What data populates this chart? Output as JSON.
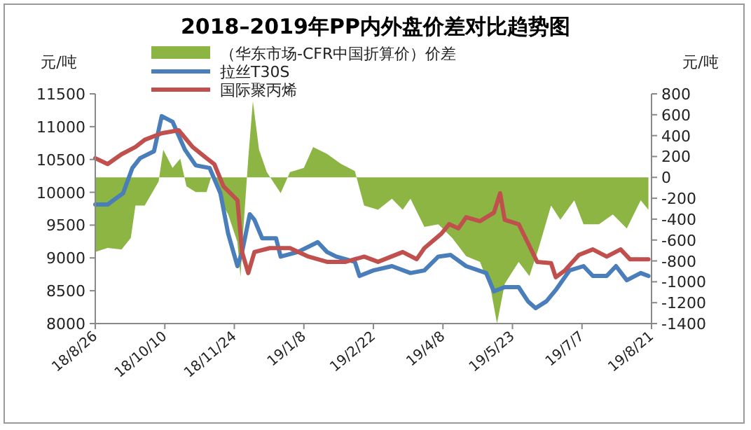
{
  "chart_data": {
    "type": "line",
    "title": "2018–2019年PP内外盘价差对比趋势图",
    "ylabel": "元/吨",
    "y2label": "元/吨",
    "legend": "top",
    "grid": false,
    "marker": "none",
    "line_style": "solid",
    "xlim": [
      "2018-08-26",
      "2019-08-21"
    ],
    "xticks": [
      {
        "value": "2018-08-26",
        "label": "18/8/26"
      },
      {
        "value": "2018-10-10",
        "label": "18/10/10"
      },
      {
        "value": "2018-11-24",
        "label": "18/11/24"
      },
      {
        "value": "2019-01-08",
        "label": "19/1/8"
      },
      {
        "value": "2019-02-22",
        "label": "19/2/22"
      },
      {
        "value": "2019-04-08",
        "label": "19/4/8"
      },
      {
        "value": "2019-05-23",
        "label": "19/5/23"
      },
      {
        "value": "2019-07-07",
        "label": "19/7/7"
      },
      {
        "value": "2019-08-21",
        "label": "19/8/21"
      }
    ],
    "ylim": [
      8000,
      11500
    ],
    "yticks": [
      8000,
      8500,
      9000,
      9500,
      10000,
      10500,
      11000,
      11500
    ],
    "y2lim": [
      -1400,
      800
    ],
    "y2ticks": [
      -1400,
      -1200,
      -1000,
      -800,
      -600,
      -400,
      -200,
      0,
      200,
      400,
      600,
      800
    ],
    "series": [
      {
        "name": "（华东市场-CFR中国折算价）价差",
        "type": "area",
        "axis": "y2",
        "color": "#8db544",
        "x": [
          "2018-08-26",
          "2018-09-03",
          "2018-09-12",
          "2018-09-18",
          "2018-09-21",
          "2018-09-27",
          "2018-10-06",
          "2018-10-09",
          "2018-10-15",
          "2018-10-20",
          "2018-10-24",
          "2018-10-30",
          "2018-11-06",
          "2018-11-10",
          "2018-11-15",
          "2018-11-20",
          "2018-11-26",
          "2018-11-28",
          "2018-11-29",
          "2018-12-03",
          "2018-12-06",
          "2018-12-10",
          "2018-12-15",
          "2018-12-24",
          "2018-12-30",
          "2019-01-08",
          "2019-01-14",
          "2019-01-23",
          "2019-02-01",
          "2019-02-10",
          "2019-02-16",
          "2019-02-25",
          "2019-03-06",
          "2019-03-13",
          "2019-03-18",
          "2019-03-27",
          "2019-04-05",
          "2019-04-14",
          "2019-04-23",
          "2019-05-02",
          "2019-05-09",
          "2019-05-13",
          "2019-05-18",
          "2019-05-27",
          "2019-06-03",
          "2019-06-09",
          "2019-06-17",
          "2019-06-23",
          "2019-07-02",
          "2019-07-08",
          "2019-07-18",
          "2019-07-27",
          "2019-08-05",
          "2019-08-14",
          "2019-08-19"
        ],
        "values": [
          -715,
          -675,
          -690,
          -580,
          -270,
          -270,
          -40,
          265,
          90,
          180,
          -85,
          -140,
          -140,
          50,
          -220,
          -355,
          -620,
          -955,
          -675,
          180,
          730,
          265,
          50,
          -150,
          50,
          90,
          290,
          225,
          130,
          60,
          -270,
          -310,
          -205,
          -310,
          -205,
          -475,
          -450,
          -580,
          -755,
          -810,
          -1075,
          -1400,
          -1020,
          -810,
          -945,
          -675,
          -270,
          -405,
          -220,
          -450,
          -450,
          -355,
          -490,
          -220,
          -310
        ]
      },
      {
        "name": "拉丝T30S",
        "color": "#4a7ebb",
        "x": [
          "2018-08-26",
          "2018-09-03",
          "2018-09-08",
          "2018-09-13",
          "2018-09-19",
          "2018-09-24",
          "2018-10-03",
          "2018-10-08",
          "2018-10-15",
          "2018-10-23",
          "2018-10-30",
          "2018-11-08",
          "2018-11-15",
          "2018-11-20",
          "2018-11-26",
          "2018-11-29",
          "2018-12-04",
          "2018-12-07",
          "2018-12-12",
          "2018-12-21",
          "2018-12-24",
          "2019-01-04",
          "2019-01-17",
          "2019-01-23",
          "2019-01-29",
          "2019-02-10",
          "2019-02-13",
          "2019-02-22",
          "2019-03-06",
          "2019-03-18",
          "2019-03-27",
          "2019-04-05",
          "2019-04-13",
          "2019-04-23",
          "2019-05-06",
          "2019-05-11",
          "2019-05-18",
          "2019-05-27",
          "2019-06-02",
          "2019-06-07",
          "2019-06-14",
          "2019-06-20",
          "2019-06-29",
          "2019-07-08",
          "2019-07-14",
          "2019-07-23",
          "2019-07-29",
          "2019-08-05",
          "2019-08-14",
          "2019-08-19"
        ],
        "values": [
          9814,
          9814,
          9900,
          9985,
          10370,
          10520,
          10625,
          11160,
          11075,
          10650,
          10410,
          10370,
          9985,
          9370,
          8875,
          9090,
          9665,
          9580,
          9300,
          9300,
          9020,
          9090,
          9240,
          9090,
          9020,
          8940,
          8725,
          8810,
          8875,
          8770,
          8810,
          9020,
          9045,
          8875,
          8770,
          8490,
          8555,
          8555,
          8340,
          8235,
          8340,
          8510,
          8810,
          8875,
          8725,
          8725,
          8875,
          8660,
          8770,
          8725
        ]
      },
      {
        "name": "国际聚丙烯",
        "color": "#c0504d",
        "x": [
          "2018-08-26",
          "2018-09-03",
          "2018-09-12",
          "2018-09-21",
          "2018-09-27",
          "2018-10-08",
          "2018-10-19",
          "2018-10-28",
          "2018-11-06",
          "2018-11-11",
          "2018-11-17",
          "2018-11-26",
          "2018-11-29",
          "2018-12-03",
          "2018-12-07",
          "2018-12-17",
          "2018-12-30",
          "2019-01-11",
          "2019-01-23",
          "2019-02-04",
          "2019-02-16",
          "2019-02-25",
          "2019-03-13",
          "2019-03-22",
          "2019-03-27",
          "2019-04-07",
          "2019-04-12",
          "2019-04-18",
          "2019-04-23",
          "2019-05-02",
          "2019-05-11",
          "2019-05-15",
          "2019-05-18",
          "2019-05-27",
          "2019-06-08",
          "2019-06-17",
          "2019-06-20",
          "2019-06-26",
          "2019-07-05",
          "2019-07-14",
          "2019-07-23",
          "2019-08-01",
          "2019-08-07",
          "2019-08-19"
        ],
        "values": [
          10520,
          10430,
          10580,
          10690,
          10800,
          10900,
          10945,
          10690,
          10520,
          10430,
          10090,
          9880,
          9090,
          8770,
          9090,
          9150,
          9150,
          9020,
          8940,
          8940,
          9020,
          8940,
          9090,
          8980,
          9150,
          9370,
          9515,
          9450,
          9620,
          9560,
          9690,
          9985,
          9580,
          9515,
          8940,
          8920,
          8705,
          8810,
          9045,
          9130,
          9020,
          9130,
          8980,
          8980
        ]
      }
    ]
  }
}
